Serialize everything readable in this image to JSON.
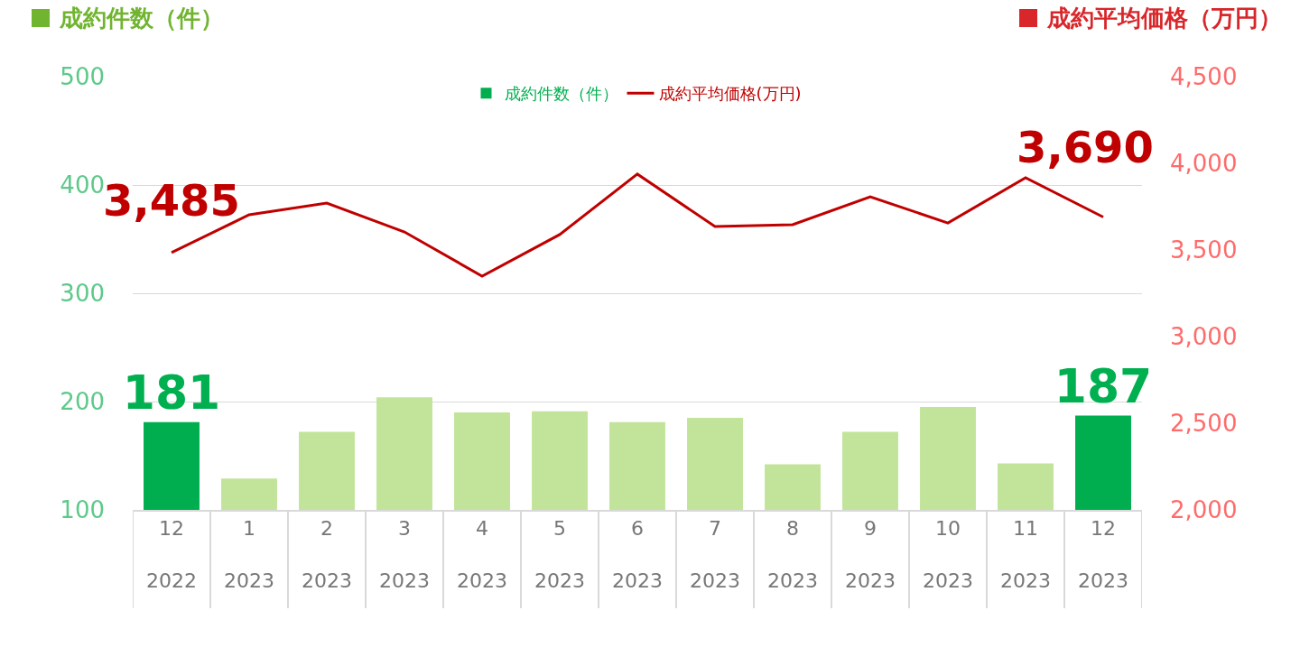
{
  "chart_data": {
    "type": "bar",
    "ylabel": "成約件数（件）",
    "y2label": "成約平均価格（万円）",
    "categories": [
      "12\n2022",
      "1\n2023",
      "2\n2023",
      "3\n2023",
      "4\n2023",
      "5\n2023",
      "6\n2023",
      "7\n2023",
      "8\n2023",
      "9\n2023",
      "10\n2023",
      "11\n2023",
      "12\n2023"
    ],
    "series": [
      {
        "name": "成約件数（件）",
        "colors": [
          "#00ad4f",
          "#c2e49a",
          "#c2e49a",
          "#c2e49a",
          "#c2e49a",
          "#c2e49a",
          "#c2e49a",
          "#c2e49a",
          "#c2e49a",
          "#c2e49a",
          "#c2e49a",
          "#c2e49a",
          "#00ad4f"
        ],
        "color": "#00b050",
        "values": [
          181,
          129,
          172,
          204,
          190,
          191,
          181,
          185,
          142,
          172,
          195,
          143,
          187
        ],
        "value_labels": [
          "181",
          null,
          null,
          null,
          null,
          null,
          null,
          null,
          null,
          null,
          null,
          null,
          "187"
        ]
      },
      {
        "name": "成約平均価格(万円)",
        "type": "line",
        "axis": "y2",
        "color": "#c00000",
        "values": [
          3485,
          3703,
          3771,
          3604,
          3349,
          3589,
          3938,
          3635,
          3646,
          3807,
          3656,
          3917,
          3690
        ],
        "value_labels": [
          "3,485",
          null,
          null,
          null,
          null,
          null,
          null,
          null,
          null,
          null,
          null,
          null,
          "3,690"
        ]
      }
    ],
    "ylim": [
      100,
      500
    ],
    "yticks": [
      100,
      200,
      300,
      400,
      500
    ],
    "y2lim": [
      2000,
      4500
    ],
    "y2ticks": [
      {
        "value": 2000,
        "label": "2,000"
      },
      {
        "value": 2500,
        "label": "2,500"
      },
      {
        "value": 3000,
        "label": "3,000"
      },
      {
        "value": 3500,
        "label": "3,500"
      },
      {
        "value": 4000,
        "label": "4,000"
      },
      {
        "value": 4500,
        "label": "4,500"
      }
    ],
    "grid": "y",
    "legend": "top",
    "marker": "none",
    "line_style": "solid"
  }
}
